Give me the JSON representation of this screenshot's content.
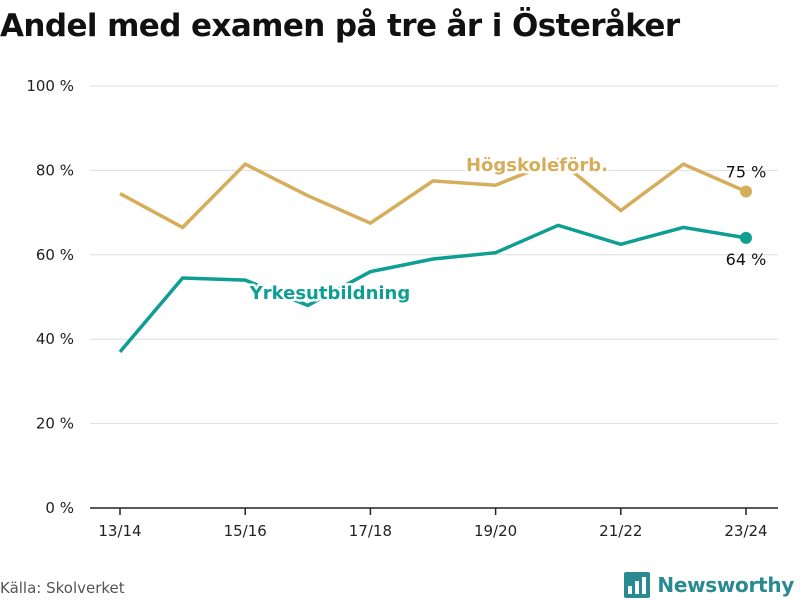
{
  "title": "Andel med examen på tre år i Österåker",
  "source": "Källa: Skolverket",
  "brand": {
    "name": "Newsworthy",
    "icon": "newsworthy-logo-icon",
    "color": "#2a8a92"
  },
  "chart_data": {
    "type": "line",
    "title": "Andel med examen på tre år i Österåker",
    "xlabel": "",
    "ylabel": "",
    "x": [
      "13/14",
      "14/15",
      "15/16",
      "16/17",
      "17/18",
      "18/19",
      "19/20",
      "20/21",
      "21/22",
      "22/23",
      "23/24"
    ],
    "x_tick_labels": [
      "13/14",
      "15/16",
      "17/18",
      "19/20",
      "21/22",
      "23/24"
    ],
    "y_ticks": [
      0,
      20,
      40,
      60,
      80,
      100
    ],
    "y_tick_labels": [
      "0 %",
      "20 %",
      "40 %",
      "60 %",
      "80 %",
      "100 %"
    ],
    "ylim": [
      0,
      100
    ],
    "grid": "horizontal",
    "legend": "none",
    "series": [
      {
        "name": "Högskoleförb.",
        "color": "#d6ad5b",
        "values": [
          74.5,
          66.5,
          81.5,
          74,
          67.5,
          77.5,
          76.5,
          82.5,
          70.5,
          81.5,
          75
        ],
        "end_label": "75 %"
      },
      {
        "name": "Yrkesutbildning",
        "color": "#0e9e93",
        "values": [
          37,
          54.5,
          54,
          48,
          56,
          59,
          60.5,
          67,
          62.5,
          66.5,
          64
        ],
        "end_label": "64 %"
      }
    ]
  }
}
